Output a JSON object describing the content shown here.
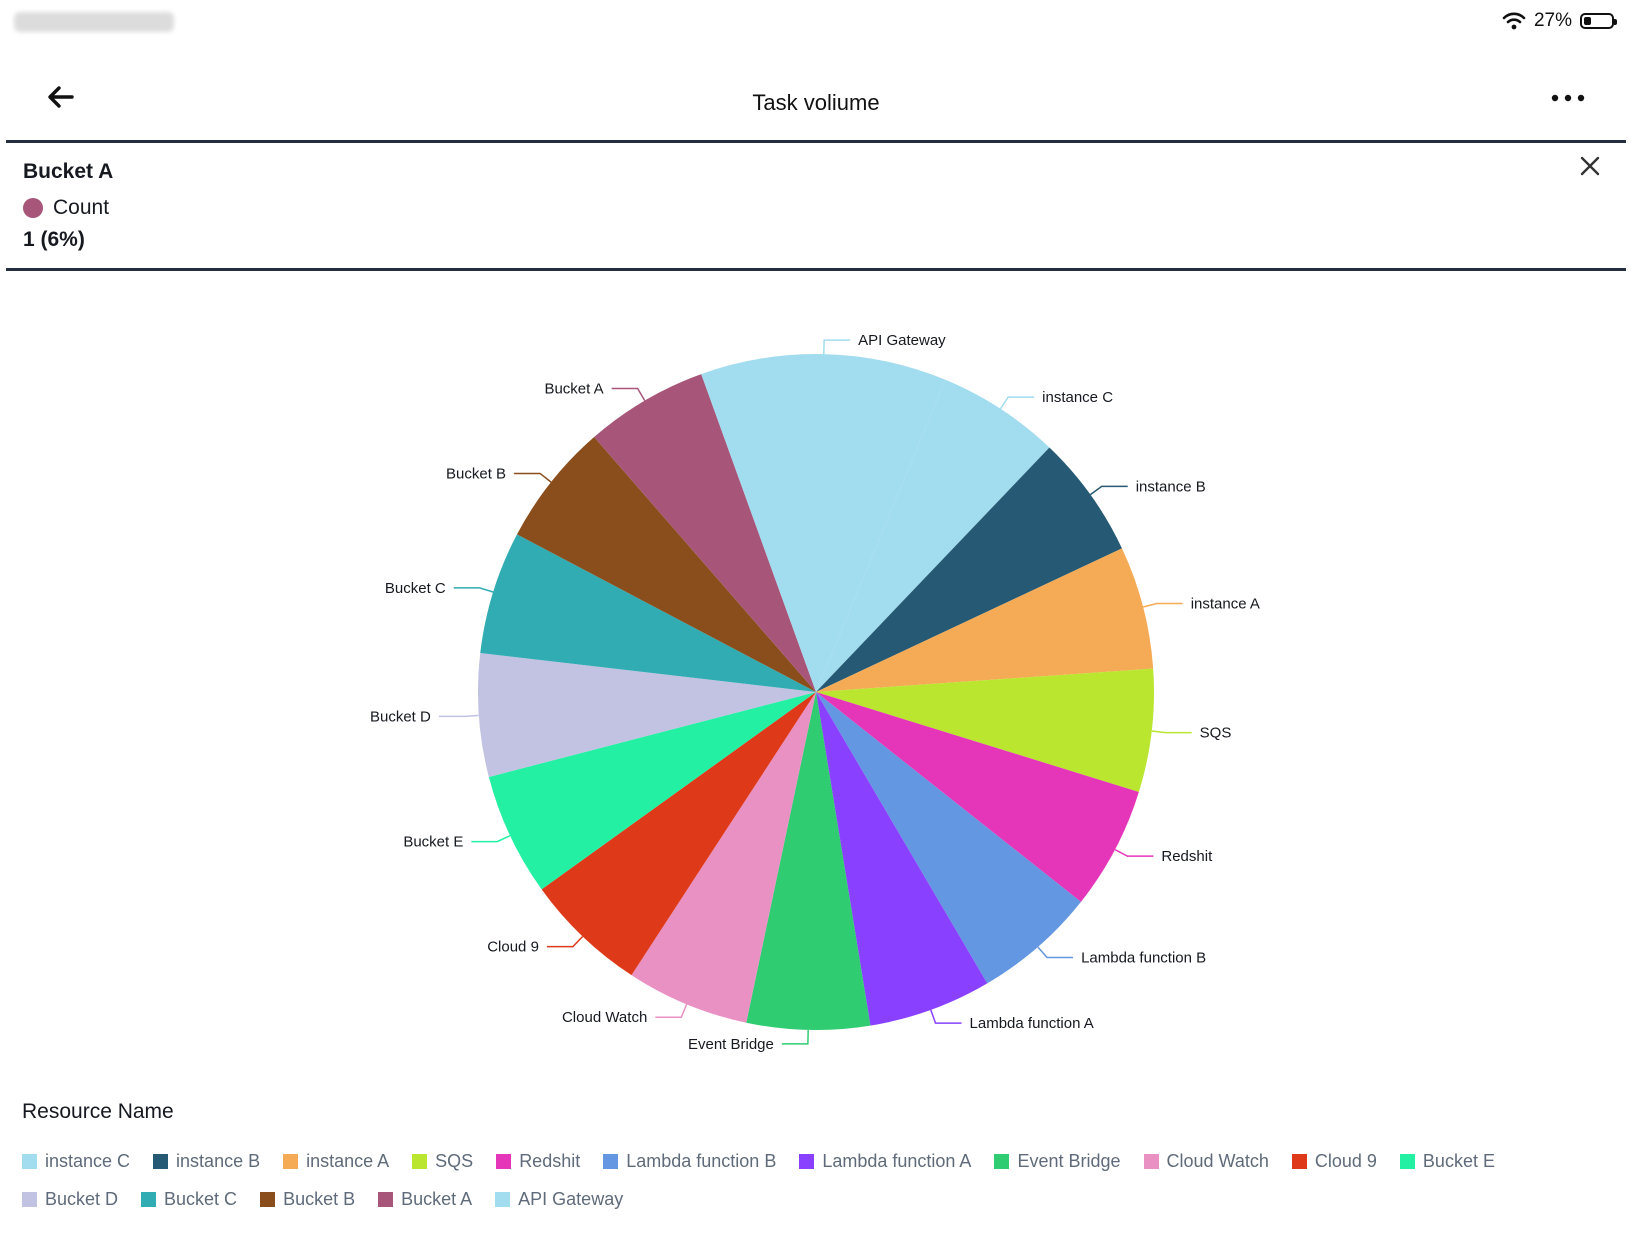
{
  "status_bar": {
    "battery_text": "27%",
    "battery_level": 0.27
  },
  "header": {
    "title": "Task voliume"
  },
  "tooltip": {
    "title": "Bucket A",
    "series_name": "Count",
    "value": "1 (6%)"
  },
  "legend": {
    "title": "Resource Name"
  },
  "chart_data": {
    "type": "pie",
    "categories": [
      "instance C",
      "instance B",
      "instance A",
      "SQS",
      "Redshit",
      "Lambda function B",
      "Lambda function A",
      "Event Bridge",
      "Cloud Watch",
      "Cloud 9",
      "Bucket E",
      "Bucket D",
      "Bucket C",
      "Bucket B",
      "Bucket A",
      "API Gateway"
    ],
    "values": [
      1,
      1,
      1,
      1,
      1,
      1,
      1,
      1,
      1,
      1,
      1,
      1,
      1,
      1,
      1,
      2
    ],
    "colors": [
      "#a2dcef",
      "#265a74",
      "#f5ab56",
      "#bae630",
      "#e535b9",
      "#6497e1",
      "#8a40ff",
      "#2fcc71",
      "#ea91c4",
      "#de3a19",
      "#24f0a3",
      "#c2c3e3",
      "#31acb2",
      "#8a4e1c",
      "#a7567a",
      "#a2dcef"
    ],
    "start_angle_deg": 22.5,
    "legend_position": "bottom"
  }
}
